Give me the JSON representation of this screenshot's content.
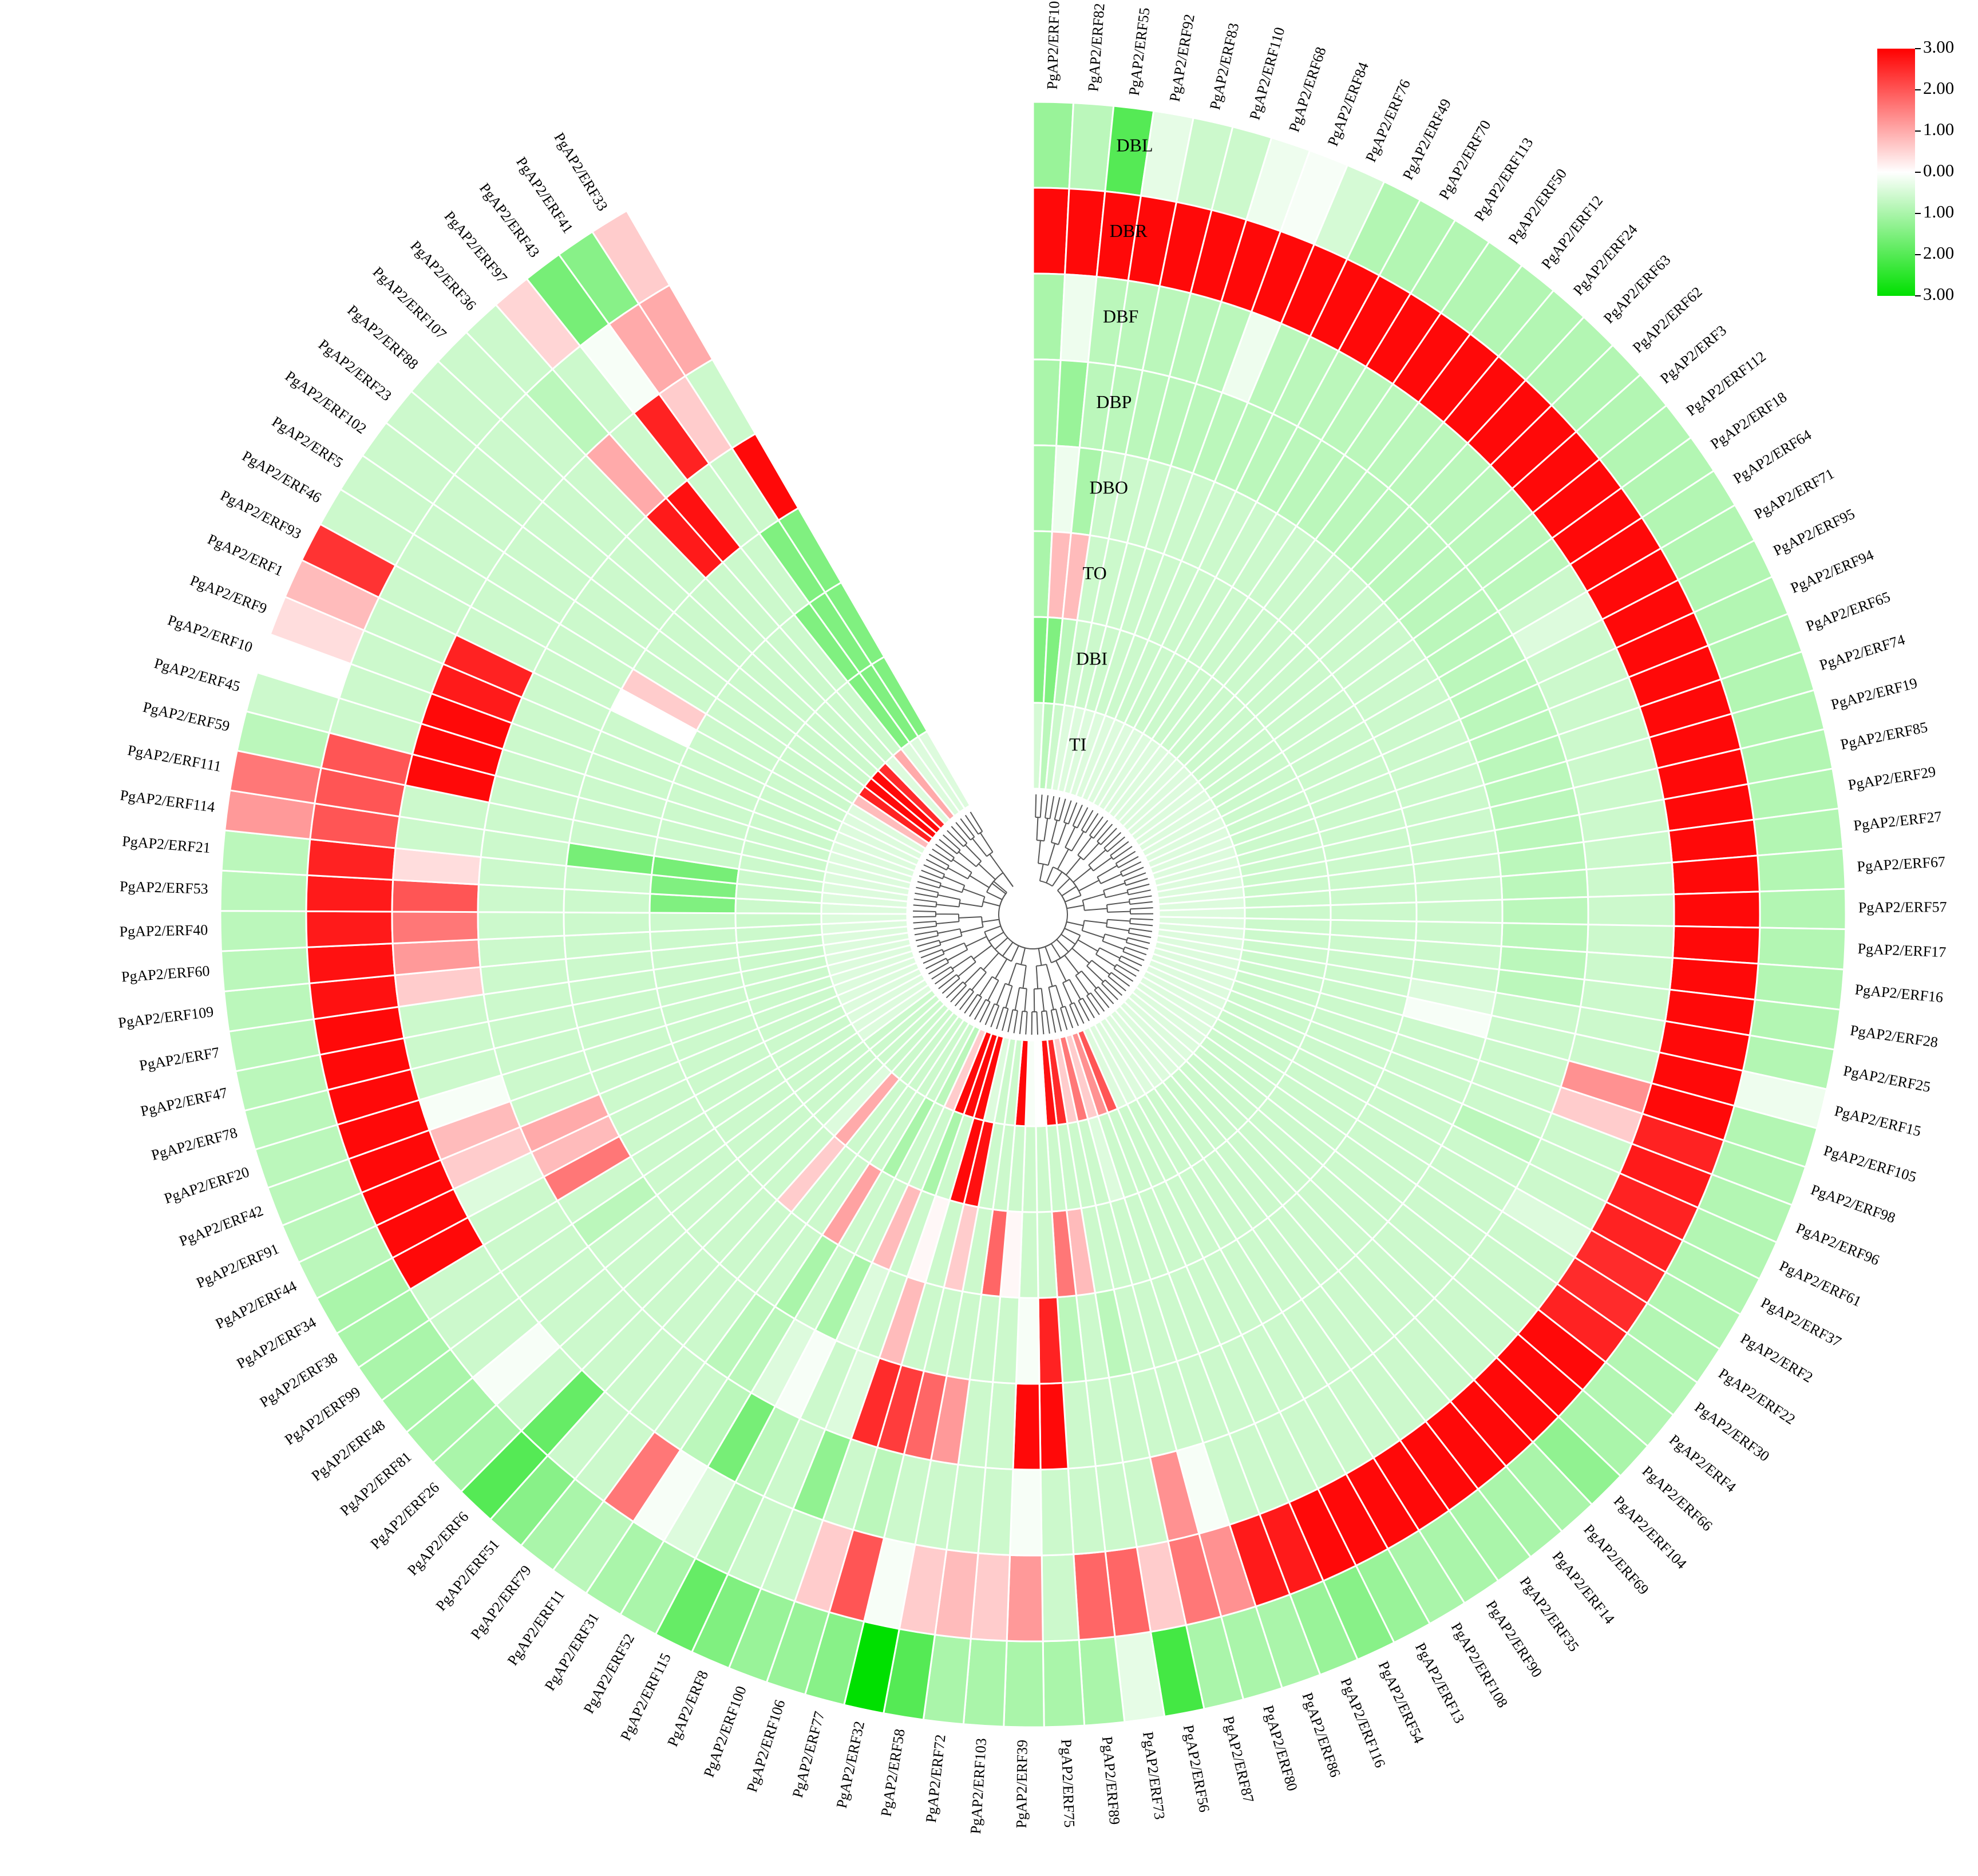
{
  "chart_data": {
    "type": "heatmap",
    "layout": "circular",
    "rings_outer_to_inner": [
      "DBL",
      "DBR",
      "DBF",
      "DBP",
      "DBO",
      "TO",
      "DBI",
      "TI"
    ],
    "color_scale": {
      "min": -3.0,
      "max": 3.0,
      "low_color": "#00e000",
      "mid_color": "#ffffff",
      "high_color": "#ff0000",
      "ticks": [
        "3.00",
        "2.00",
        "1.00",
        "0.00",
        "1.00",
        "2.00",
        "3.00"
      ]
    },
    "genes": [
      "PgAP2/ERF101",
      "PgAP2/ERF82",
      "PgAP2/ERF55",
      "PgAP2/ERF92",
      "PgAP2/ERF83",
      "PgAP2/ERF110",
      "PgAP2/ERF68",
      "PgAP2/ERF84",
      "PgAP2/ERF76",
      "PgAP2/ERF49",
      "PgAP2/ERF70",
      "PgAP2/ERF113",
      "PgAP2/ERF50",
      "PgAP2/ERF12",
      "PgAP2/ERF24",
      "PgAP2/ERF63",
      "PgAP2/ERF62",
      "PgAP2/ERF3",
      "PgAP2/ERF112",
      "PgAP2/ERF18",
      "PgAP2/ERF64",
      "PgAP2/ERF71",
      "PgAP2/ERF95",
      "PgAP2/ERF94",
      "PgAP2/ERF65",
      "PgAP2/ERF74",
      "PgAP2/ERF19",
      "PgAP2/ERF85",
      "PgAP2/ERF29",
      "PgAP2/ERF27",
      "PgAP2/ERF67",
      "PgAP2/ERF57",
      "PgAP2/ERF17",
      "PgAP2/ERF16",
      "PgAP2/ERF28",
      "PgAP2/ERF25",
      "PgAP2/ERF15",
      "PgAP2/ERF105",
      "PgAP2/ERF98",
      "PgAP2/ERF96",
      "PgAP2/ERF61",
      "PgAP2/ERF37",
      "PgAP2/ERF2",
      "PgAP2/ERF22",
      "PgAP2/ERF30",
      "PgAP2/ERF4",
      "PgAP2/ERF66",
      "PgAP2/ERF104",
      "PgAP2/ERF69",
      "PgAP2/ERF14",
      "PgAP2/ERF35",
      "PgAP2/ERF90",
      "PgAP2/ERF108",
      "PgAP2/ERF13",
      "PgAP2/ERF54",
      "PgAP2/ERF116",
      "PgAP2/ERF86",
      "PgAP2/ERF80",
      "PgAP2/ERF87",
      "PgAP2/ERF56",
      "PgAP2/ERF73",
      "PgAP2/ERF89",
      "PgAP2/ERF75",
      "PgAP2/ERF39",
      "PgAP2/ERF103",
      "PgAP2/ERF72",
      "PgAP2/ERF58",
      "PgAP2/ERF32",
      "PgAP2/ERF77",
      "PgAP2/ERF106",
      "PgAP2/ERF100",
      "PgAP2/ERF8",
      "PgAP2/ERF115",
      "PgAP2/ERF52",
      "PgAP2/ERF31",
      "PgAP2/ERF11",
      "PgAP2/ERF79",
      "PgAP2/ERF51",
      "PgAP2/ERF6",
      "PgAP2/ERF26",
      "PgAP2/ERF81",
      "PgAP2/ERF48",
      "PgAP2/ERF99",
      "PgAP2/ERF38",
      "PgAP2/ERF34",
      "PgAP2/ERF44",
      "PgAP2/ERF91",
      "PgAP2/ERF42",
      "PgAP2/ERF20",
      "PgAP2/ERF78",
      "PgAP2/ERF47",
      "PgAP2/ERF7",
      "PgAP2/ERF109",
      "PgAP2/ERF60",
      "PgAP2/ERF40",
      "PgAP2/ERF53",
      "PgAP2/ERF21",
      "PgAP2/ERF114",
      "PgAP2/ERF111",
      "PgAP2/ERF59",
      "PgAP2/ERF45",
      "PgAP2/ERF10",
      "PgAP2/ERF9",
      "PgAP2/ERF1",
      "PgAP2/ERF93",
      "PgAP2/ERF46",
      "PgAP2/ERF5",
      "PgAP2/ERF102",
      "PgAP2/ERF23",
      "PgAP2/ERF88",
      "PgAP2/ERF107",
      "PgAP2/ERF36",
      "PgAP2/ERF97",
      "PgAP2/ERF43",
      "PgAP2/ERF41",
      "PgAP2/ERF33"
    ],
    "values": [
      [
        -1.2,
        2.9,
        -1.0,
        -1.0,
        -1.0,
        -1.0,
        -1.5,
        -0.5
      ],
      [
        -0.8,
        2.9,
        -0.2,
        -1.2,
        -0.2,
        0.8,
        -1.5,
        -0.8
      ],
      [
        -2.0,
        2.9,
        -0.8,
        -0.8,
        -1.0,
        0.8,
        -0.8,
        -0.6
      ],
      [
        -0.3,
        2.9,
        -0.8,
        -0.8,
        -0.6,
        -0.6,
        -0.6,
        -0.4
      ],
      [
        -0.6,
        2.9,
        -0.8,
        -0.8,
        -0.6,
        -0.6,
        -0.6,
        -0.4
      ],
      [
        -0.6,
        2.9,
        -0.8,
        -0.8,
        -0.6,
        -0.6,
        -0.6,
        -0.4
      ],
      [
        -0.2,
        2.9,
        -0.8,
        -0.8,
        -0.6,
        -0.6,
        -0.6,
        -0.4
      ],
      [
        -0.1,
        2.9,
        -0.2,
        -0.8,
        -0.6,
        -0.6,
        -0.6,
        -0.4
      ],
      [
        -0.5,
        2.9,
        -0.8,
        -0.8,
        -0.6,
        -0.6,
        -0.6,
        -0.4
      ],
      [
        -0.9,
        2.9,
        -0.8,
        -0.8,
        -0.6,
        -0.6,
        -0.6,
        -0.4
      ],
      [
        -0.9,
        2.9,
        -0.8,
        -0.8,
        -0.6,
        -0.6,
        -0.6,
        -0.4
      ],
      [
        -0.9,
        2.9,
        -0.8,
        -0.8,
        -0.6,
        -0.6,
        -0.6,
        -0.4
      ],
      [
        -0.9,
        2.9,
        -0.8,
        -0.8,
        -0.6,
        -0.6,
        -0.6,
        -0.4
      ],
      [
        -0.9,
        2.9,
        -0.8,
        -0.8,
        -0.6,
        -0.6,
        -0.6,
        -0.4
      ],
      [
        -0.9,
        2.9,
        -0.8,
        -0.8,
        -0.6,
        -0.6,
        -0.6,
        -0.4
      ],
      [
        -0.9,
        2.9,
        -0.8,
        -0.8,
        -0.6,
        -0.6,
        -0.6,
        -0.4
      ],
      [
        -0.9,
        2.9,
        -0.8,
        -0.8,
        -0.6,
        -0.6,
        -0.6,
        -0.4
      ],
      [
        -0.9,
        2.9,
        -0.8,
        -0.8,
        -0.6,
        -0.6,
        -0.6,
        -0.4
      ],
      [
        -0.9,
        2.9,
        -0.8,
        -0.8,
        -0.6,
        -0.6,
        -0.6,
        -0.4
      ],
      [
        -0.9,
        2.9,
        -0.8,
        -0.8,
        -0.6,
        -0.6,
        -0.6,
        -0.4
      ],
      [
        -0.9,
        2.9,
        -0.6,
        -0.8,
        -0.6,
        -0.6,
        -0.6,
        -0.4
      ],
      [
        -0.9,
        2.9,
        -0.4,
        -0.8,
        -0.6,
        -0.6,
        -0.6,
        -0.4
      ],
      [
        -0.9,
        2.9,
        -0.6,
        -0.8,
        -0.6,
        -0.6,
        -0.6,
        -0.4
      ],
      [
        -0.9,
        2.9,
        -0.6,
        -0.8,
        -0.6,
        -0.6,
        -0.6,
        -0.4
      ],
      [
        -0.9,
        2.9,
        -0.6,
        -0.8,
        -0.6,
        -0.6,
        -0.6,
        -0.4
      ],
      [
        -0.9,
        2.9,
        -0.6,
        -0.8,
        -0.6,
        -0.6,
        -0.6,
        -0.4
      ],
      [
        -0.9,
        2.9,
        -0.6,
        -0.8,
        -0.6,
        -0.6,
        -0.6,
        -0.4
      ],
      [
        -0.9,
        2.9,
        -0.6,
        -0.8,
        -0.6,
        -0.6,
        -0.6,
        -0.4
      ],
      [
        -0.9,
        2.9,
        -0.6,
        -0.8,
        -0.6,
        -0.6,
        -0.6,
        -0.4
      ],
      [
        -0.9,
        2.9,
        -0.6,
        -0.8,
        -0.6,
        -0.6,
        -0.6,
        -0.4
      ],
      [
        -0.9,
        2.9,
        -0.6,
        -0.8,
        -0.6,
        -0.6,
        -0.6,
        -0.4
      ],
      [
        -0.9,
        2.9,
        -0.6,
        -0.8,
        -0.6,
        -0.6,
        -0.6,
        -0.4
      ],
      [
        -0.9,
        2.9,
        -0.6,
        -0.8,
        -0.6,
        -0.6,
        -0.6,
        -0.4
      ],
      [
        -0.9,
        2.9,
        -0.6,
        -0.8,
        -0.6,
        -0.6,
        -0.6,
        -0.4
      ],
      [
        -0.9,
        2.9,
        -0.6,
        -0.8,
        -0.6,
        -0.6,
        -0.6,
        -0.4
      ],
      [
        -0.9,
        2.9,
        -0.6,
        -0.6,
        -0.4,
        -0.6,
        -0.6,
        -0.4
      ],
      [
        -0.2,
        2.9,
        -0.6,
        -0.6,
        -0.1,
        -0.6,
        -0.6,
        -0.4
      ],
      [
        -0.9,
        2.9,
        1.3,
        -0.6,
        -0.6,
        -0.6,
        -0.6,
        -0.4
      ],
      [
        -0.9,
        2.6,
        0.6,
        -0.6,
        -0.6,
        -0.6,
        -0.6,
        -0.4
      ],
      [
        -0.9,
        2.7,
        -0.6,
        -0.6,
        -0.6,
        -0.6,
        -0.6,
        -0.4
      ],
      [
        -0.9,
        2.6,
        -0.6,
        -0.8,
        -0.6,
        -0.6,
        -0.6,
        -0.4
      ],
      [
        -0.9,
        2.6,
        -0.6,
        -0.6,
        -0.6,
        -0.6,
        -0.6,
        -0.4
      ],
      [
        -0.9,
        2.5,
        -0.4,
        -0.6,
        -0.6,
        -0.6,
        -0.6,
        -0.4
      ],
      [
        -0.9,
        2.5,
        -0.6,
        -0.6,
        -0.6,
        -0.6,
        -0.6,
        -0.4
      ],
      [
        -0.9,
        2.6,
        -0.6,
        -0.6,
        -0.6,
        -0.6,
        -0.6,
        -0.4
      ],
      [
        -0.9,
        2.9,
        -0.6,
        -0.6,
        -0.6,
        -0.6,
        -0.6,
        -0.4
      ],
      [
        -1.0,
        2.9,
        -0.6,
        -0.6,
        -0.6,
        -0.6,
        -0.6,
        -0.4
      ],
      [
        -1.3,
        2.9,
        -0.6,
        -0.6,
        -0.6,
        -0.6,
        -0.6,
        -0.4
      ],
      [
        -1.0,
        2.9,
        -0.6,
        -0.6,
        -0.6,
        -0.6,
        -0.6,
        -0.4
      ],
      [
        -1.0,
        2.9,
        -0.6,
        -0.6,
        -0.6,
        -0.6,
        -0.6,
        -0.4
      ],
      [
        -1.0,
        2.9,
        -0.6,
        -0.6,
        -0.6,
        -0.6,
        -0.6,
        -0.4
      ],
      [
        -1.0,
        2.9,
        -0.6,
        -0.6,
        -0.6,
        -0.6,
        -0.6,
        -0.4
      ],
      [
        -1.0,
        2.9,
        -0.6,
        -0.6,
        -0.6,
        -0.6,
        -0.6,
        -0.4
      ],
      [
        -1.2,
        2.9,
        -0.6,
        -0.6,
        -0.6,
        -0.6,
        -0.6,
        -0.4
      ],
      [
        -1.4,
        2.9,
        -0.6,
        -0.6,
        -0.6,
        -0.6,
        -0.6,
        -0.4
      ],
      [
        -1.2,
        2.7,
        -0.6,
        -0.6,
        -0.6,
        -0.6,
        -0.6,
        2.0
      ],
      [
        -1.0,
        2.7,
        -0.6,
        -0.6,
        -0.6,
        -0.6,
        -0.6,
        1.3
      ],
      [
        -1.0,
        1.3,
        -0.1,
        -0.6,
        -0.6,
        -0.6,
        -0.4,
        0.6
      ],
      [
        -1.0,
        1.6,
        1.3,
        -0.6,
        -0.6,
        -0.6,
        -0.6,
        1.6
      ],
      [
        -2.2,
        0.6,
        -0.6,
        -0.6,
        -0.8,
        -0.6,
        -0.6,
        0.6
      ],
      [
        -0.3,
        1.8,
        -0.6,
        -0.6,
        -0.6,
        0.8,
        -0.6,
        2.5
      ],
      [
        -1.0,
        1.8,
        -0.6,
        -0.6,
        -0.8,
        1.6,
        -0.6,
        2.8
      ],
      [
        -1.0,
        -0.6,
        -0.6,
        2.9,
        2.6,
        -0.6,
        -0.6,
        0.0
      ],
      [
        -1.0,
        1.2,
        -0.1,
        2.9,
        -0.1,
        -0.6,
        -0.6,
        -0.1
      ],
      [
        -1.0,
        0.6,
        -0.6,
        -0.6,
        -0.6,
        0.1,
        -0.6,
        2.9
      ],
      [
        -1.0,
        0.8,
        -0.6,
        -0.6,
        -0.6,
        1.8,
        -0.6,
        -0.6
      ],
      [
        -2.0,
        0.6,
        -0.6,
        1.2,
        -0.6,
        -0.6,
        -0.6,
        -0.6
      ],
      [
        -3.0,
        -0.1,
        -0.6,
        1.8,
        -0.6,
        0.6,
        2.8,
        -0.4
      ],
      [
        -1.4,
        2.0,
        -0.8,
        2.3,
        -0.6,
        -0.6,
        2.9,
        2.9
      ],
      [
        -1.2,
        0.6,
        -0.6,
        2.5,
        0.8,
        0.1,
        -0.6,
        2.9
      ],
      [
        -1.2,
        -0.6,
        -1.3,
        -0.4,
        -0.6,
        -0.6,
        -1.0,
        2.9
      ],
      [
        -1.5,
        -0.6,
        -0.6,
        -0.6,
        -0.4,
        0.8,
        -0.6,
        0.6
      ],
      [
        -1.8,
        -0.8,
        -0.8,
        -0.1,
        -1.0,
        -0.6,
        -0.6,
        -0.8
      ],
      [
        -1.0,
        -0.4,
        -1.6,
        -0.4,
        -0.6,
        -0.6,
        -1.0,
        -0.6
      ],
      [
        -1.0,
        -0.1,
        -0.8,
        -0.8,
        -1.0,
        1.1,
        -0.6,
        -0.6
      ],
      [
        -0.8,
        1.6,
        -0.6,
        -0.8,
        -0.6,
        -0.6,
        -0.6,
        -0.6
      ],
      [
        -1.0,
        -0.6,
        -0.6,
        -0.6,
        -0.6,
        -0.6,
        -0.6,
        -0.6
      ],
      [
        -1.4,
        -0.6,
        -0.6,
        -0.6,
        -0.6,
        0.6,
        1.0,
        -0.6
      ],
      [
        -2.0,
        -1.8,
        -0.6,
        -0.6,
        -0.6,
        -0.6,
        -0.4,
        -0.6
      ],
      [
        -1.0,
        -0.6,
        -0.6,
        -0.6,
        -0.6,
        -0.6,
        -0.6,
        -0.6
      ],
      [
        -1.0,
        -0.1,
        -0.6,
        -0.6,
        -0.6,
        -0.6,
        -0.6,
        -0.6
      ],
      [
        -1.0,
        -0.6,
        -0.6,
        -0.6,
        -0.6,
        -0.6,
        -0.6,
        -0.6
      ],
      [
        -1.0,
        -0.6,
        -0.6,
        -0.8,
        -0.6,
        -0.6,
        -0.6,
        -0.4
      ],
      [
        -1.0,
        -0.6,
        -0.6,
        -0.6,
        -0.6,
        -0.6,
        -0.6,
        -0.4
      ],
      [
        -1.0,
        2.9,
        -0.6,
        1.6,
        -0.6,
        -0.6,
        -0.6,
        -0.4
      ],
      [
        -0.8,
        2.9,
        -0.4,
        0.8,
        -0.6,
        -0.6,
        -0.6,
        -0.4
      ],
      [
        -0.8,
        2.9,
        0.6,
        1.0,
        -0.6,
        -0.6,
        -0.6,
        -0.4
      ],
      [
        -0.8,
        2.9,
        0.8,
        -0.6,
        -0.6,
        -0.6,
        -0.6,
        -0.4
      ],
      [
        -0.8,
        2.9,
        -0.1,
        -0.6,
        -0.6,
        -0.6,
        -0.6,
        -0.4
      ],
      [
        -0.8,
        2.9,
        -0.6,
        -0.6,
        -0.6,
        -0.6,
        -0.6,
        -0.4
      ],
      [
        -0.8,
        2.9,
        -0.6,
        -0.6,
        -0.6,
        -0.6,
        -0.6,
        -0.4
      ],
      [
        -0.8,
        2.9,
        -0.6,
        -0.6,
        -0.6,
        -0.6,
        -0.6,
        -0.4
      ],
      [
        -0.8,
        2.8,
        0.6,
        -0.6,
        -0.6,
        -0.6,
        -0.6,
        -0.4
      ],
      [
        -0.8,
        2.8,
        1.2,
        -0.6,
        -0.6,
        -0.6,
        -0.6,
        -0.4
      ],
      [
        -0.8,
        2.7,
        1.6,
        -0.6,
        -0.6,
        -0.6,
        -0.6,
        -0.4
      ],
      [
        -0.8,
        2.7,
        2.0,
        -0.6,
        -0.6,
        -1.5,
        -0.6,
        -0.4
      ],
      [
        -0.8,
        2.6,
        0.4,
        -0.6,
        -0.6,
        -1.5,
        -0.6,
        -0.4
      ],
      [
        1.2,
        2.0,
        -0.6,
        -0.6,
        -1.6,
        -1.6,
        -0.6,
        -0.4
      ],
      [
        1.6,
        2.0,
        -0.6,
        -0.6,
        -0.6,
        -0.6,
        -0.6,
        -0.4
      ],
      [
        -0.8,
        2.0,
        2.9,
        -0.6,
        -0.6,
        -0.6,
        -0.6,
        -0.4
      ],
      [
        -0.6,
        -0.6,
        2.9,
        -0.6,
        -0.6,
        -0.6,
        -0.6,
        -0.4
      ],
      [
        0.0,
        -0.6,
        2.9,
        -0.6,
        -0.6,
        -0.6,
        -0.6,
        -0.4
      ],
      [
        0.4,
        -0.6,
        2.7,
        -0.6,
        -0.6,
        -0.6,
        -0.6,
        -0.4
      ],
      [
        0.8,
        -0.6,
        2.6,
        -0.6,
        -0.6,
        -0.6,
        -0.6,
        -0.4
      ],
      [
        2.4,
        -0.6,
        -0.6,
        -0.6,
        0.0,
        -0.6,
        -0.6,
        -0.4
      ],
      [
        -0.6,
        -0.6,
        -0.6,
        -0.6,
        0.6,
        -0.6,
        -0.6,
        -0.4
      ],
      [
        -0.6,
        -0.6,
        -0.6,
        -0.6,
        -0.6,
        -0.6,
        -0.6,
        0.8
      ],
      [
        -0.6,
        -0.6,
        -0.6,
        -0.6,
        -0.6,
        -0.6,
        -0.6,
        2.6
      ],
      [
        -0.6,
        -0.6,
        -0.6,
        -0.6,
        -0.6,
        -0.6,
        -0.6,
        2.9
      ],
      [
        -0.6,
        -0.6,
        -0.6,
        -0.6,
        -0.6,
        -0.6,
        -0.6,
        2.9
      ],
      [
        -0.6,
        -0.6,
        -0.6,
        -0.6,
        -0.6,
        -0.6,
        -0.6,
        2.5
      ],
      [
        -0.6,
        -0.8,
        1.0,
        2.7,
        -0.6,
        -0.6,
        -0.6,
        -0.4
      ],
      [
        0.5,
        -0.6,
        -0.6,
        2.8,
        -0.6,
        -0.6,
        -0.6,
        1.0
      ],
      [
        -1.6,
        -0.1,
        2.6,
        -0.6,
        -0.6,
        -1.5,
        -1.5,
        -0.4
      ],
      [
        -1.4,
        1.0,
        0.6,
        -0.6,
        -1.5,
        -1.5,
        -1.5,
        -0.4
      ],
      [
        0.6,
        1.0,
        -0.6,
        2.9,
        -1.5,
        -1.5,
        -1.5,
        -0.4
      ]
    ]
  }
}
